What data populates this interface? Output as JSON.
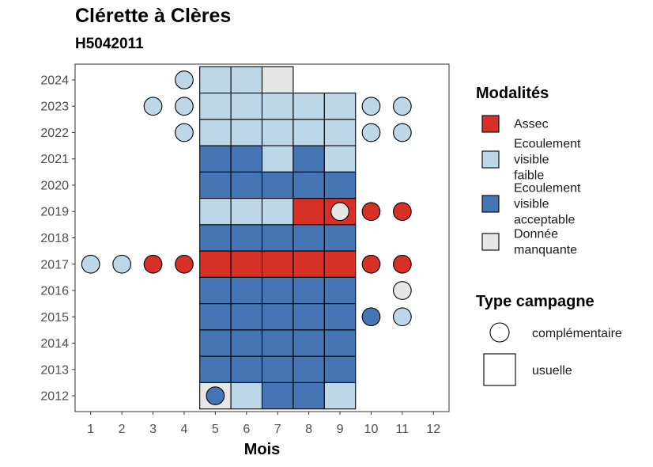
{
  "title": "Clérette à Clères",
  "subtitle": "H5042011",
  "chart_data": {
    "type": "heatmap",
    "xlabel": "Mois",
    "ylabel": "",
    "x_ticks": [
      "1",
      "2",
      "3",
      "4",
      "5",
      "6",
      "7",
      "8",
      "9",
      "10",
      "11",
      "12"
    ],
    "y_ticks": [
      "2012",
      "2013",
      "2014",
      "2015",
      "2016",
      "2017",
      "2018",
      "2019",
      "2020",
      "2021",
      "2022",
      "2023",
      "2024"
    ],
    "xlim": [
      0.5,
      12.5
    ],
    "ylim": [
      2011.4,
      2024.6
    ],
    "grid": false,
    "legend_position": "right",
    "colors": {
      "assec": "#d73027",
      "faible": "#bcd7e8",
      "acceptable": "#4575b4",
      "manquante": "#e6e6e6"
    },
    "legend_modalites": {
      "title": "Modalités",
      "items": [
        {
          "key": "assec",
          "lines": [
            "Assec"
          ]
        },
        {
          "key": "faible",
          "lines": [
            "Ecoulement",
            "visible",
            "faible"
          ]
        },
        {
          "key": "acceptable",
          "lines": [
            "Ecoulement",
            "visible",
            "acceptable"
          ]
        },
        {
          "key": "manquante",
          "lines": [
            "Donnée",
            "manquante"
          ]
        }
      ]
    },
    "legend_type": {
      "title": "Type campagne",
      "items": [
        {
          "shape": "circle",
          "label": "complémentaire"
        },
        {
          "shape": "square",
          "label": "usuelle"
        }
      ]
    },
    "usuelle": [
      {
        "year": 2024,
        "months": [
          "faible",
          "faible",
          "manquante",
          null,
          null
        ]
      },
      {
        "year": 2023,
        "months": [
          "faible",
          "faible",
          "faible",
          "faible",
          "faible"
        ]
      },
      {
        "year": 2022,
        "months": [
          "faible",
          "faible",
          "faible",
          "faible",
          "faible"
        ]
      },
      {
        "year": 2021,
        "months": [
          "acceptable",
          "acceptable",
          "faible",
          "acceptable",
          "faible"
        ]
      },
      {
        "year": 2020,
        "months": [
          "acceptable",
          "acceptable",
          "acceptable",
          "acceptable",
          "acceptable"
        ]
      },
      {
        "year": 2019,
        "months": [
          "faible",
          "faible",
          "faible",
          "assec",
          "assec"
        ]
      },
      {
        "year": 2018,
        "months": [
          "acceptable",
          "acceptable",
          "acceptable",
          "acceptable",
          "acceptable"
        ]
      },
      {
        "year": 2017,
        "months": [
          "assec",
          "assec",
          "assec",
          "assec",
          "assec"
        ]
      },
      {
        "year": 2016,
        "months": [
          "acceptable",
          "acceptable",
          "acceptable",
          "acceptable",
          "acceptable"
        ]
      },
      {
        "year": 2015,
        "months": [
          "acceptable",
          "acceptable",
          "acceptable",
          "acceptable",
          "acceptable"
        ]
      },
      {
        "year": 2014,
        "months": [
          "acceptable",
          "acceptable",
          "acceptable",
          "acceptable",
          "acceptable"
        ]
      },
      {
        "year": 2013,
        "months": [
          "acceptable",
          "acceptable",
          "acceptable",
          "acceptable",
          "acceptable"
        ]
      },
      {
        "year": 2012,
        "months": [
          "manquante",
          "faible",
          "acceptable",
          "acceptable",
          "faible"
        ]
      }
    ],
    "usuelle_first_month": 5,
    "complementaire": [
      {
        "year": 2024,
        "month": 4,
        "value": "faible"
      },
      {
        "year": 2023,
        "month": 3,
        "value": "faible"
      },
      {
        "year": 2023,
        "month": 4,
        "value": "faible"
      },
      {
        "year": 2023,
        "month": 10,
        "value": "faible"
      },
      {
        "year": 2023,
        "month": 11,
        "value": "faible"
      },
      {
        "year": 2022,
        "month": 4,
        "value": "faible"
      },
      {
        "year": 2022,
        "month": 10,
        "value": "faible"
      },
      {
        "year": 2022,
        "month": 11,
        "value": "faible"
      },
      {
        "year": 2019,
        "month": 9,
        "value": "manquante"
      },
      {
        "year": 2019,
        "month": 10,
        "value": "assec"
      },
      {
        "year": 2019,
        "month": 11,
        "value": "assec"
      },
      {
        "year": 2017,
        "month": 1,
        "value": "faible"
      },
      {
        "year": 2017,
        "month": 2,
        "value": "faible"
      },
      {
        "year": 2017,
        "month": 3,
        "value": "assec"
      },
      {
        "year": 2017,
        "month": 4,
        "value": "assec"
      },
      {
        "year": 2017,
        "month": 10,
        "value": "assec"
      },
      {
        "year": 2017,
        "month": 11,
        "value": "assec"
      },
      {
        "year": 2016,
        "month": 11,
        "value": "manquante"
      },
      {
        "year": 2015,
        "month": 10,
        "value": "acceptable"
      },
      {
        "year": 2015,
        "month": 11,
        "value": "faible"
      },
      {
        "year": 2012,
        "month": 5,
        "value": "acceptable"
      }
    ]
  }
}
